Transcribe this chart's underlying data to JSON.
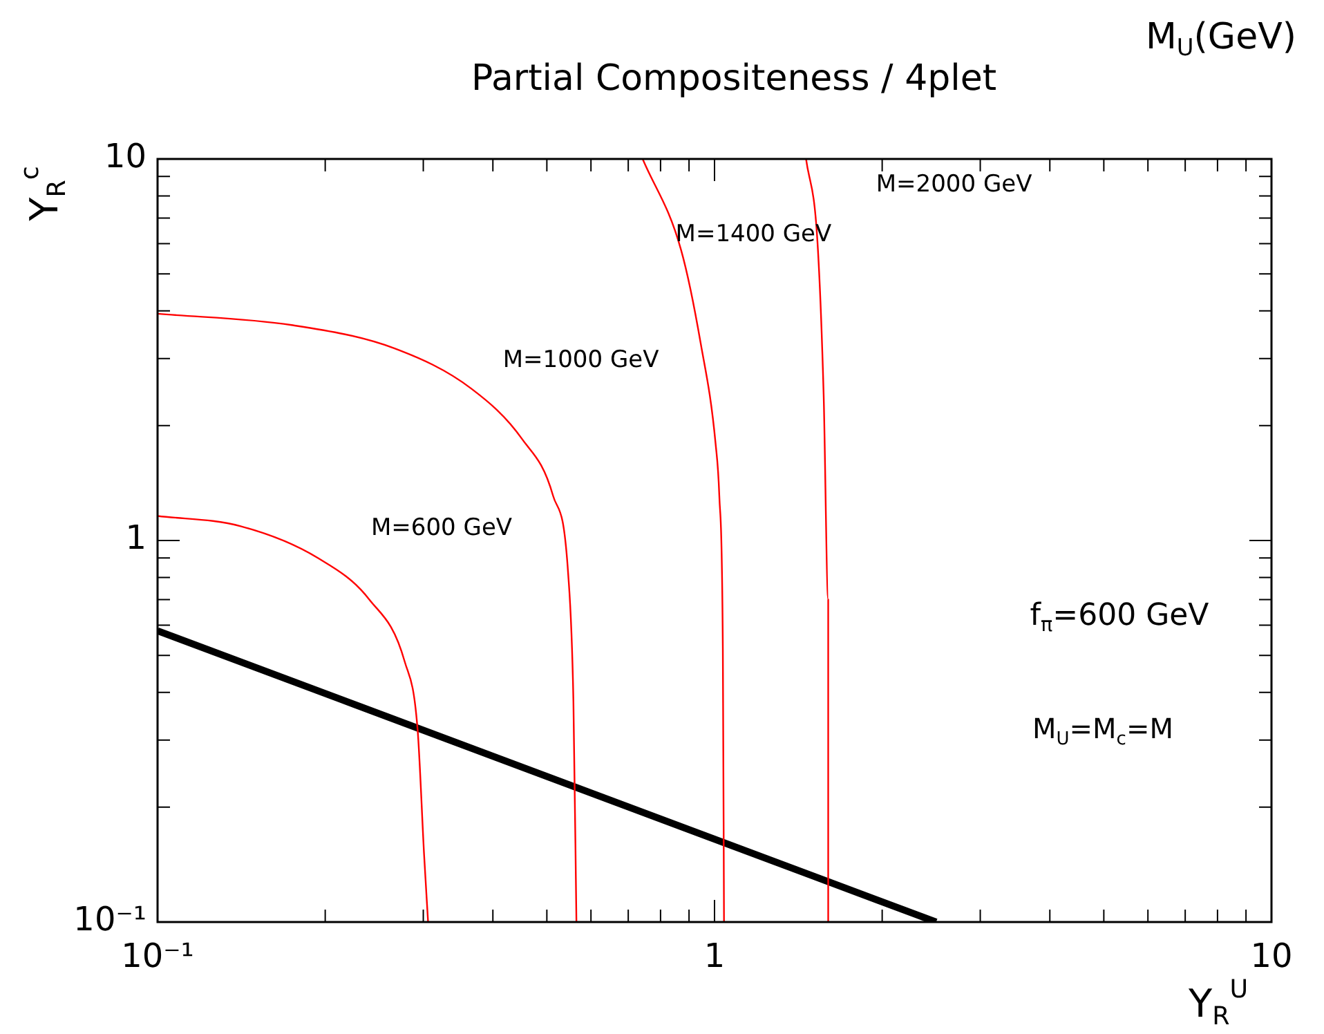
{
  "chart_data": {
    "type": "line",
    "title": "Partial Compositeness / 4plet",
    "xlabel": "Y$_{R}$$^{U}$",
    "ylabel": "Y$_{R}$$^{c}$",
    "log": "xy",
    "grid": false,
    "legend": false,
    "marker": "none",
    "line_style": "solid",
    "xlim": [
      0.1,
      10
    ],
    "ylim": [
      0.1,
      10
    ],
    "xticks": [
      {
        "value": 0.1,
        "label": "10⁻¹"
      },
      {
        "value": 0.2,
        "label": null
      },
      {
        "value": 0.3,
        "label": null
      },
      {
        "value": 0.4,
        "label": null
      },
      {
        "value": 0.5,
        "label": null
      },
      {
        "value": 0.6,
        "label": null
      },
      {
        "value": 0.7,
        "label": null
      },
      {
        "value": 0.8,
        "label": null
      },
      {
        "value": 0.9,
        "label": null
      },
      1,
      {
        "value": 2,
        "label": null
      },
      {
        "value": 3,
        "label": null
      },
      {
        "value": 4,
        "label": null
      },
      {
        "value": 5,
        "label": null
      },
      {
        "value": 6,
        "label": null
      },
      {
        "value": 7,
        "label": null
      },
      {
        "value": 8,
        "label": null
      },
      {
        "value": 9,
        "label": null
      },
      10
    ],
    "yticks": [
      {
        "value": 0.1,
        "label": "10⁻¹"
      },
      {
        "value": 0.2,
        "label": null
      },
      {
        "value": 0.3,
        "label": null
      },
      {
        "value": 0.4,
        "label": null
      },
      {
        "value": 0.5,
        "label": null
      },
      {
        "value": 0.6,
        "label": null
      },
      {
        "value": 0.7,
        "label": null
      },
      {
        "value": 0.8,
        "label": null
      },
      {
        "value": 0.9,
        "label": null
      },
      1,
      {
        "value": 2,
        "label": null
      },
      {
        "value": 3,
        "label": null
      },
      {
        "value": 4,
        "label": null
      },
      {
        "value": 5,
        "label": null
      },
      {
        "value": 6,
        "label": null
      },
      {
        "value": 7,
        "label": null
      },
      {
        "value": 8,
        "label": null
      },
      {
        "value": 9,
        "label": null
      },
      10
    ],
    "series": [
      {
        "name": "M=600 GeV",
        "color": "#ff0000",
        "x": [
          0.1,
          0.141,
          0.194,
          0.24,
          0.278,
          0.293,
          0.301,
          0.306
        ],
        "values": [
          1.16,
          1.09,
          0.9,
          0.7,
          0.48,
          0.32,
          0.15,
          0.1
        ]
      },
      {
        "name": "M=1000 GeV",
        "color": "#ff0000",
        "x": [
          0.1,
          0.174,
          0.266,
          0.366,
          0.452,
          0.513,
          0.546,
          0.558,
          0.565
        ],
        "values": [
          3.93,
          3.67,
          3.19,
          2.5,
          1.84,
          1.31,
          0.82,
          0.38,
          0.1
        ]
      },
      {
        "name": "M=1400 GeV",
        "color": "#ff0000",
        "x": [
          0.743,
          0.871,
          0.944,
          1.005,
          1.02,
          1.035,
          1.04
        ],
        "values": [
          10,
          5.77,
          3.3,
          1.78,
          1.31,
          0.52,
          0.1
        ]
      },
      {
        "name": "M=2000 GeV",
        "color": "#ff0000",
        "x": [
          1.46,
          1.53,
          1.57,
          1.6,
          1.6
        ],
        "values": [
          10,
          6.11,
          2.42,
          0.7,
          0.1
        ]
      },
      {
        "color": "#000000",
        "x": [
          0.1,
          2.5
        ],
        "values": [
          0.58,
          0.1
        ]
      }
    ],
    "annotations": [
      "f$_{π}$=600 GeV",
      "M$_{U}$=M$_{c}$=M",
      "M$_{U}$(GeV)"
    ]
  }
}
